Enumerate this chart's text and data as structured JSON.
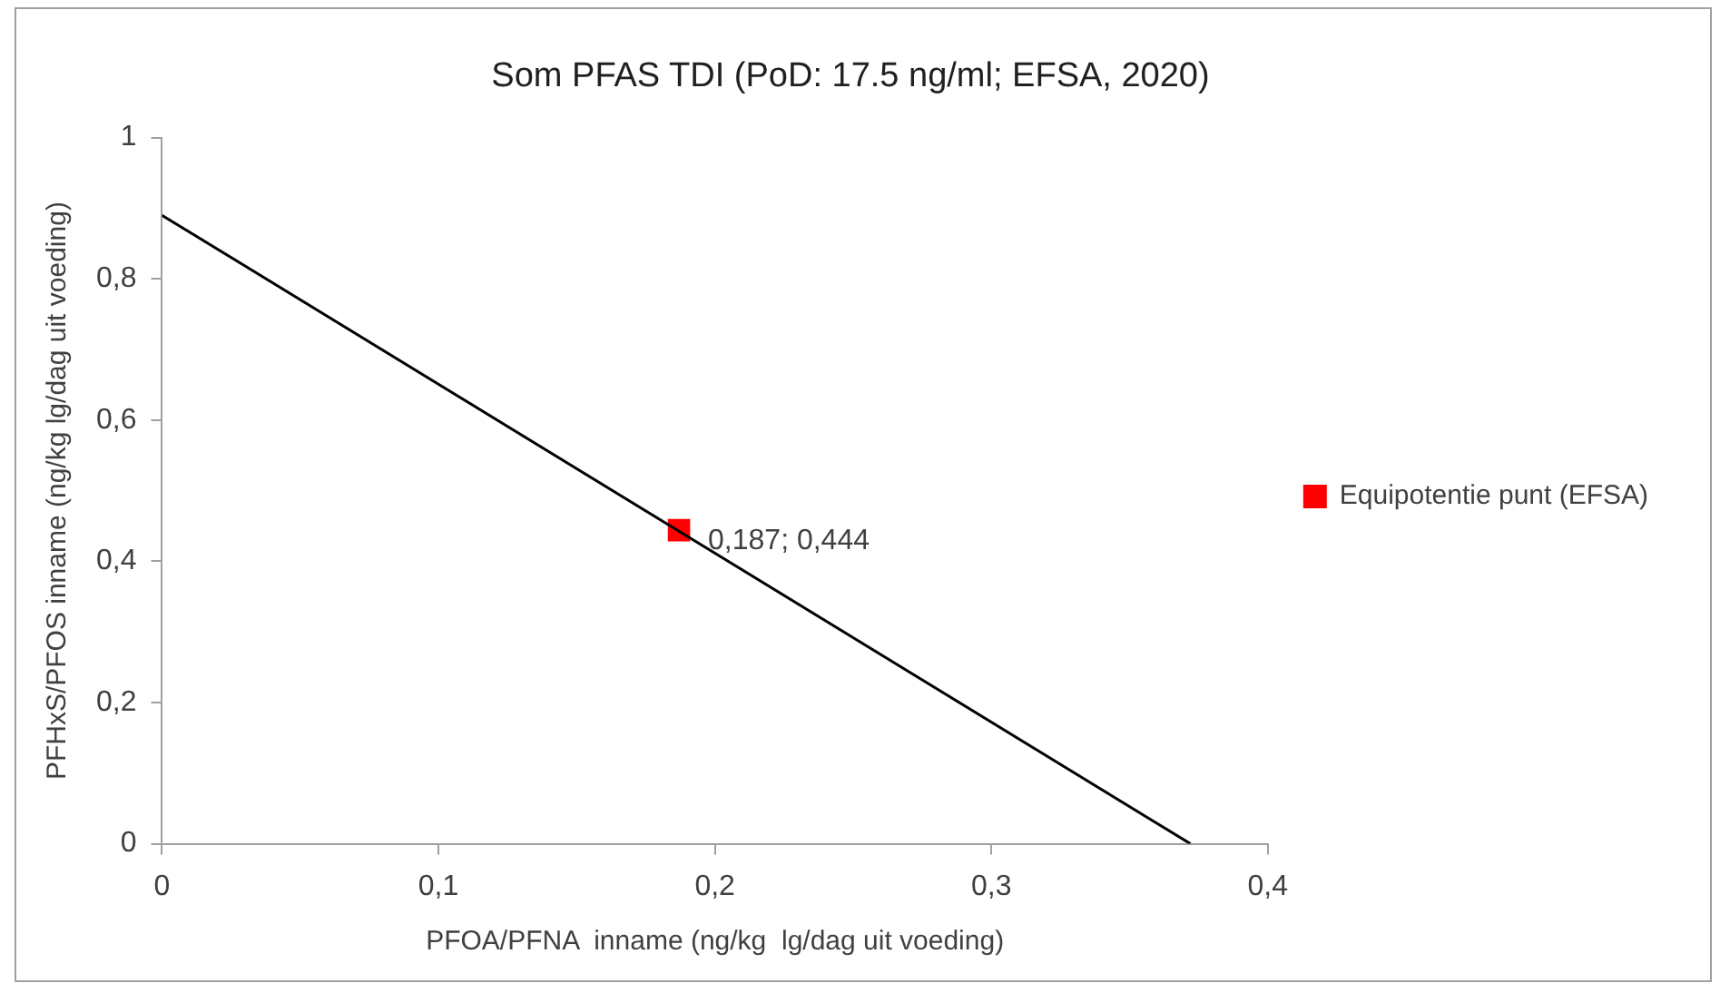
{
  "chart_data": {
    "type": "scatter",
    "title": "Som PFAS TDI (PoD: 17.5 ng/ml; EFSA, 2020)",
    "xlabel": "PFOA/PFNA  inname (ng/kg  lg/dag uit voeding)",
    "ylabel": "PFHxS/PFOS inname (ng/kg lg/dag uit voeding)",
    "series": [
      {
        "type": "line",
        "color": "#000000",
        "x": [
          0,
          0.372
        ],
        "values": [
          0.89,
          0
        ],
        "marker": "none",
        "line_style": "solid"
      },
      {
        "type": "scatter",
        "name": "Equipotentie punt (EFSA)",
        "color": "#ff0000",
        "x": [
          0.187
        ],
        "values": [
          0.444
        ],
        "marker": "square"
      }
    ],
    "annotations": [
      {
        "text": "0,187; 0,444",
        "x": 0.187,
        "y": 0.444
      }
    ],
    "xlim": [
      0,
      0.4
    ],
    "ylim": [
      0,
      1
    ],
    "xticks": [
      0,
      {
        "value": 0.1,
        "label": "0,1"
      },
      {
        "value": 0.2,
        "label": "0,2"
      },
      {
        "value": 0.3,
        "label": "0,3"
      },
      {
        "value": 0.4,
        "label": "0,4"
      }
    ],
    "yticks": [
      0,
      {
        "value": 0.2,
        "label": "0,2"
      },
      {
        "value": 0.4,
        "label": "0,4"
      },
      {
        "value": 0.6,
        "label": "0,6"
      },
      {
        "value": 0.8,
        "label": "0,8"
      },
      1
    ],
    "grid": false,
    "legend": "right"
  }
}
